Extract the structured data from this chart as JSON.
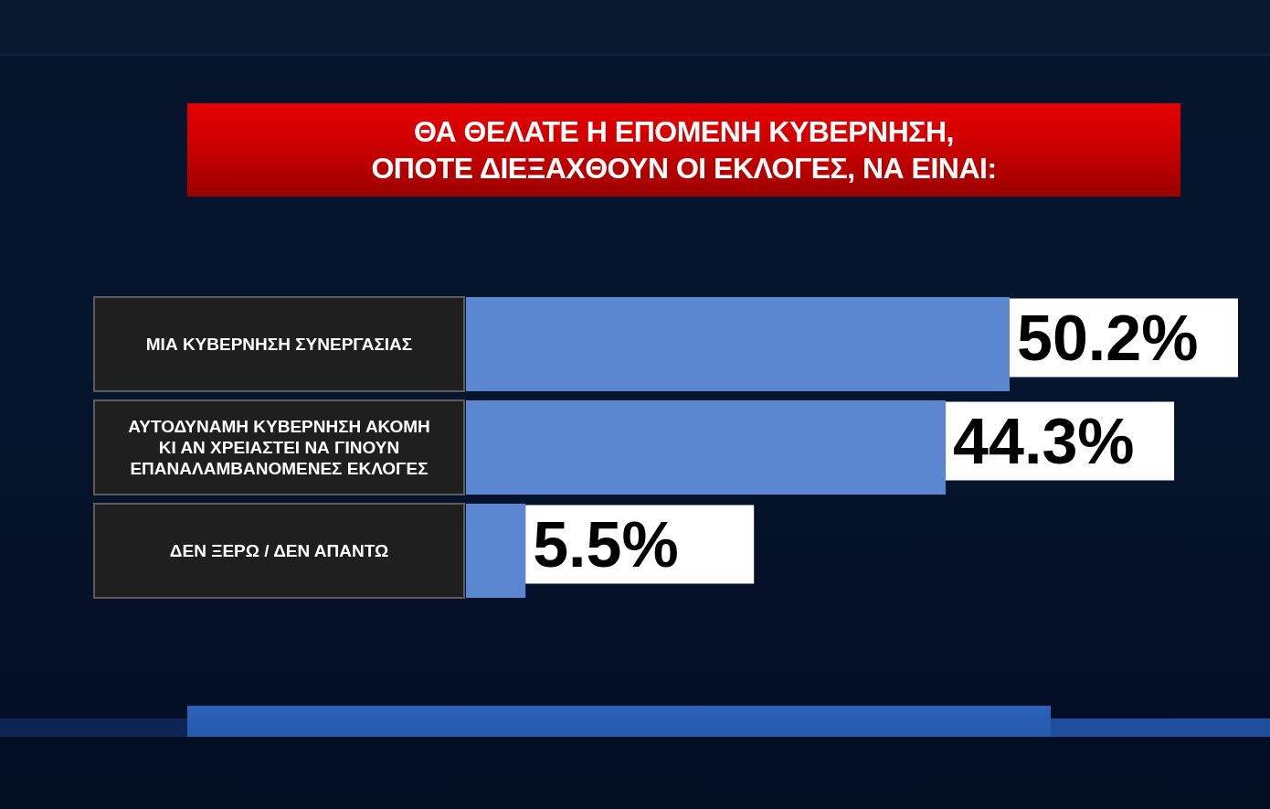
{
  "chart_data": {
    "type": "bar",
    "orientation": "horizontal",
    "title": "ΘΑ ΘΕΛΑΤΕ Η ΕΠΟΜΕΝΗ ΚΥΒΕΡΝΗΣΗ, ΟΠΟΤΕ ΔΙΕΞΑΧΘΟΥΝ ΟΙ ΕΚΛΟΓΕΣ, ΝΑ ΕΙΝΑΙ:",
    "categories": [
      "ΜΙΑ ΚΥΒΕΡΝΗΣΗ ΣΥΝΕΡΓΑΣΙΑΣ",
      "ΑΥΤΟΔΥΝΑΜΗ ΚΥΒΕΡΝΗΣΗ ΑΚΟΜΗ ΚΙ ΑΝ ΧΡΕΙΑΣΤΕΙ ΝΑ ΓΙΝΟΥΝ ΕΠΑΝΑΛΑΜΒΑΝΟΜΕΝΕΣ ΕΚΛΟΓΕΣ",
      "ΔΕΝ ΞΕΡΩ / ΔΕΝ ΑΠΑΝΤΩ"
    ],
    "values": [
      50.2,
      44.3,
      5.5
    ],
    "value_labels": [
      "50.2%",
      "44.3%",
      "5.5%"
    ],
    "color": "#5a87d0"
  }
}
